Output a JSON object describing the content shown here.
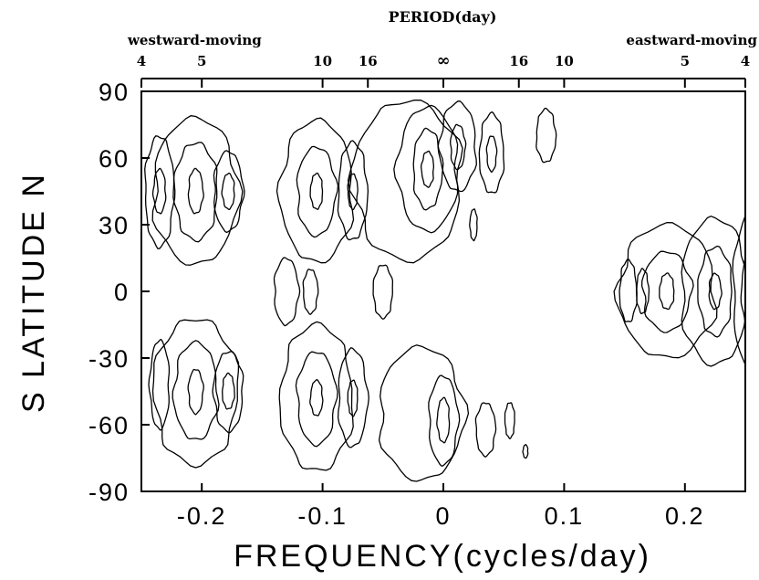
{
  "chart_data": {
    "type": "contour",
    "xlabel": "FREQUENCY(cycles/day)",
    "ylabel": "S LATITUDE N",
    "top_axis_label": "PERIOD(day)",
    "top_left_label": "westward-moving",
    "top_right_label": "eastward-moving",
    "xlim": [
      -0.25,
      0.25
    ],
    "ylim": [
      -90,
      90
    ],
    "x_ticks": [
      {
        "value": -0.2,
        "label": "-0.2"
      },
      {
        "value": -0.1,
        "label": "-0.1"
      },
      {
        "value": 0,
        "label": "0"
      },
      {
        "value": 0.1,
        "label": "0.1"
      },
      {
        "value": 0.2,
        "label": "0.2"
      }
    ],
    "y_ticks": [
      {
        "value": 90,
        "label": "90"
      },
      {
        "value": 60,
        "label": "60"
      },
      {
        "value": 30,
        "label": "30"
      },
      {
        "value": 0,
        "label": "0"
      },
      {
        "value": -30,
        "label": "-30"
      },
      {
        "value": -60,
        "label": "-60"
      },
      {
        "value": -90,
        "label": "-90"
      }
    ],
    "top_ticks": [
      {
        "freq": -0.25,
        "label": "4"
      },
      {
        "freq": -0.2,
        "label": "5"
      },
      {
        "freq": -0.1,
        "label": "10"
      },
      {
        "freq": -0.0625,
        "label": "16"
      },
      {
        "freq": 0,
        "label": "∞"
      },
      {
        "freq": 0.0625,
        "label": "16"
      },
      {
        "freq": 0.1,
        "label": "10"
      },
      {
        "freq": 0.2,
        "label": "5"
      },
      {
        "freq": 0.25,
        "label": "4"
      }
    ],
    "contour_groups": [
      {
        "cx": -0.205,
        "cy": 45,
        "levels": [
          {
            "rx": 0.035,
            "ry": 33
          },
          {
            "rx": 0.018,
            "ry": 22
          },
          {
            "rx": 0.006,
            "ry": 10
          }
        ]
      },
      {
        "cx": -0.178,
        "cy": 45,
        "levels": [
          {
            "rx": 0.012,
            "ry": 18
          },
          {
            "rx": 0.005,
            "ry": 8
          }
        ]
      },
      {
        "cx": -0.235,
        "cy": 45,
        "levels": [
          {
            "rx": 0.012,
            "ry": 25
          },
          {
            "rx": 0.005,
            "ry": 10
          }
        ]
      },
      {
        "cx": -0.205,
        "cy": -45,
        "levels": [
          {
            "rx": 0.035,
            "ry": 33
          },
          {
            "rx": 0.018,
            "ry": 22
          },
          {
            "rx": 0.006,
            "ry": 10
          }
        ]
      },
      {
        "cx": -0.178,
        "cy": -45,
        "levels": [
          {
            "rx": 0.012,
            "ry": 18
          },
          {
            "rx": 0.005,
            "ry": 8
          }
        ]
      },
      {
        "cx": -0.235,
        "cy": -42,
        "levels": [
          {
            "rx": 0.008,
            "ry": 20
          }
        ]
      },
      {
        "cx": -0.105,
        "cy": 45,
        "levels": [
          {
            "rx": 0.03,
            "ry": 32
          },
          {
            "rx": 0.016,
            "ry": 20
          },
          {
            "rx": 0.005,
            "ry": 8
          }
        ]
      },
      {
        "cx": -0.105,
        "cy": -48,
        "levels": [
          {
            "rx": 0.03,
            "ry": 33
          },
          {
            "rx": 0.016,
            "ry": 21
          },
          {
            "rx": 0.005,
            "ry": 8
          }
        ]
      },
      {
        "cx": -0.075,
        "cy": 45,
        "levels": [
          {
            "rx": 0.012,
            "ry": 22
          },
          {
            "rx": 0.004,
            "ry": 8
          }
        ]
      },
      {
        "cx": -0.075,
        "cy": -48,
        "levels": [
          {
            "rx": 0.012,
            "ry": 22
          },
          {
            "rx": 0.004,
            "ry": 8
          }
        ]
      },
      {
        "cx": -0.13,
        "cy": 0,
        "levels": [
          {
            "rx": 0.01,
            "ry": 15
          }
        ]
      },
      {
        "cx": -0.11,
        "cy": 0,
        "levels": [
          {
            "rx": 0.006,
            "ry": 10
          }
        ]
      },
      {
        "cx": -0.05,
        "cy": 0,
        "levels": [
          {
            "rx": 0.008,
            "ry": 12
          }
        ]
      },
      {
        "cx": -0.03,
        "cy": 50,
        "levels": [
          {
            "rx": 0.045,
            "ry": 36
          }
        ]
      },
      {
        "cx": -0.013,
        "cy": 55,
        "levels": [
          {
            "rx": 0.025,
            "ry": 28
          },
          {
            "rx": 0.012,
            "ry": 18
          },
          {
            "rx": 0.005,
            "ry": 8
          }
        ]
      },
      {
        "cx": 0.012,
        "cy": 65,
        "levels": [
          {
            "rx": 0.015,
            "ry": 20
          },
          {
            "rx": 0.006,
            "ry": 10
          }
        ]
      },
      {
        "cx": 0.04,
        "cy": 62,
        "levels": [
          {
            "rx": 0.01,
            "ry": 18
          },
          {
            "rx": 0.004,
            "ry": 8
          }
        ]
      },
      {
        "cx": 0.085,
        "cy": 70,
        "levels": [
          {
            "rx": 0.008,
            "ry": 12
          }
        ]
      },
      {
        "cx": -0.018,
        "cy": -55,
        "levels": [
          {
            "rx": 0.035,
            "ry": 30
          }
        ]
      },
      {
        "cx": 0,
        "cy": -58,
        "levels": [
          {
            "rx": 0.012,
            "ry": 20
          },
          {
            "rx": 0.005,
            "ry": 10
          }
        ]
      },
      {
        "cx": 0.035,
        "cy": -62,
        "levels": [
          {
            "rx": 0.008,
            "ry": 12
          }
        ]
      },
      {
        "cx": 0.055,
        "cy": -58,
        "levels": [
          {
            "rx": 0.004,
            "ry": 8
          }
        ]
      },
      {
        "cx": 0.025,
        "cy": 30,
        "levels": [
          {
            "rx": 0.003,
            "ry": 7
          }
        ]
      },
      {
        "cx": 0.068,
        "cy": -72,
        "levels": [
          {
            "rx": 0.002,
            "ry": 3
          }
        ]
      },
      {
        "cx": 0.185,
        "cy": 0,
        "levels": [
          {
            "rx": 0.04,
            "ry": 30
          },
          {
            "rx": 0.02,
            "ry": 18
          },
          {
            "rx": 0.006,
            "ry": 8
          }
        ]
      },
      {
        "cx": 0.153,
        "cy": 0,
        "levels": [
          {
            "rx": 0.007,
            "ry": 14
          }
        ]
      },
      {
        "cx": 0.165,
        "cy": 0,
        "levels": [
          {
            "rx": 0.005,
            "ry": 10
          }
        ]
      },
      {
        "cx": 0.225,
        "cy": 0,
        "levels": [
          {
            "rx": 0.028,
            "ry": 33
          },
          {
            "rx": 0.014,
            "ry": 20
          },
          {
            "rx": 0.005,
            "ry": 8
          }
        ]
      },
      {
        "cx": 0.255,
        "cy": 0,
        "levels": [
          {
            "rx": 0.015,
            "ry": 35
          },
          {
            "rx": 0.008,
            "ry": 20
          }
        ]
      }
    ]
  }
}
